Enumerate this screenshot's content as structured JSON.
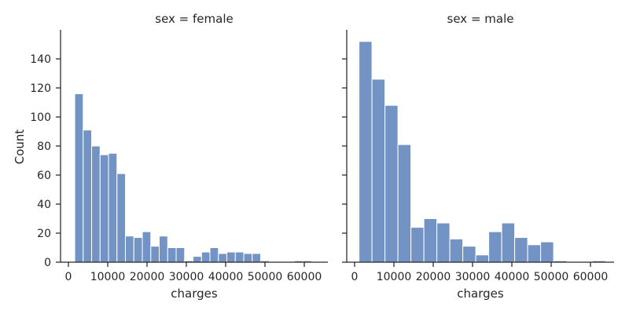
{
  "chart_data": {
    "type": "bar",
    "xlabel": "charges",
    "ylabel": "Count",
    "xlim": [
      -2000,
      66000
    ],
    "ylim": [
      0,
      160
    ],
    "x_ticks": [
      0,
      10000,
      20000,
      30000,
      40000,
      50000,
      60000
    ],
    "y_ticks": [
      0,
      20,
      40,
      60,
      80,
      100,
      120,
      140
    ],
    "bar_color": "#7393c4",
    "panels": [
      {
        "title": "sex = female",
        "bin_start": 1607,
        "bin_width": 2150,
        "values": [
          116,
          91,
          80,
          74,
          75,
          61,
          18,
          17,
          21,
          11,
          18,
          10,
          10,
          1,
          4,
          7,
          10,
          6,
          7,
          7,
          6,
          6,
          1,
          0,
          0,
          0,
          1,
          1,
          0
        ]
      },
      {
        "title": "sex = male",
        "bin_start": 1121,
        "bin_width": 3300,
        "values": [
          152,
          126,
          108,
          81,
          24,
          30,
          27,
          16,
          11,
          5,
          21,
          27,
          17,
          12,
          14,
          1,
          0,
          0,
          1
        ]
      }
    ]
  }
}
